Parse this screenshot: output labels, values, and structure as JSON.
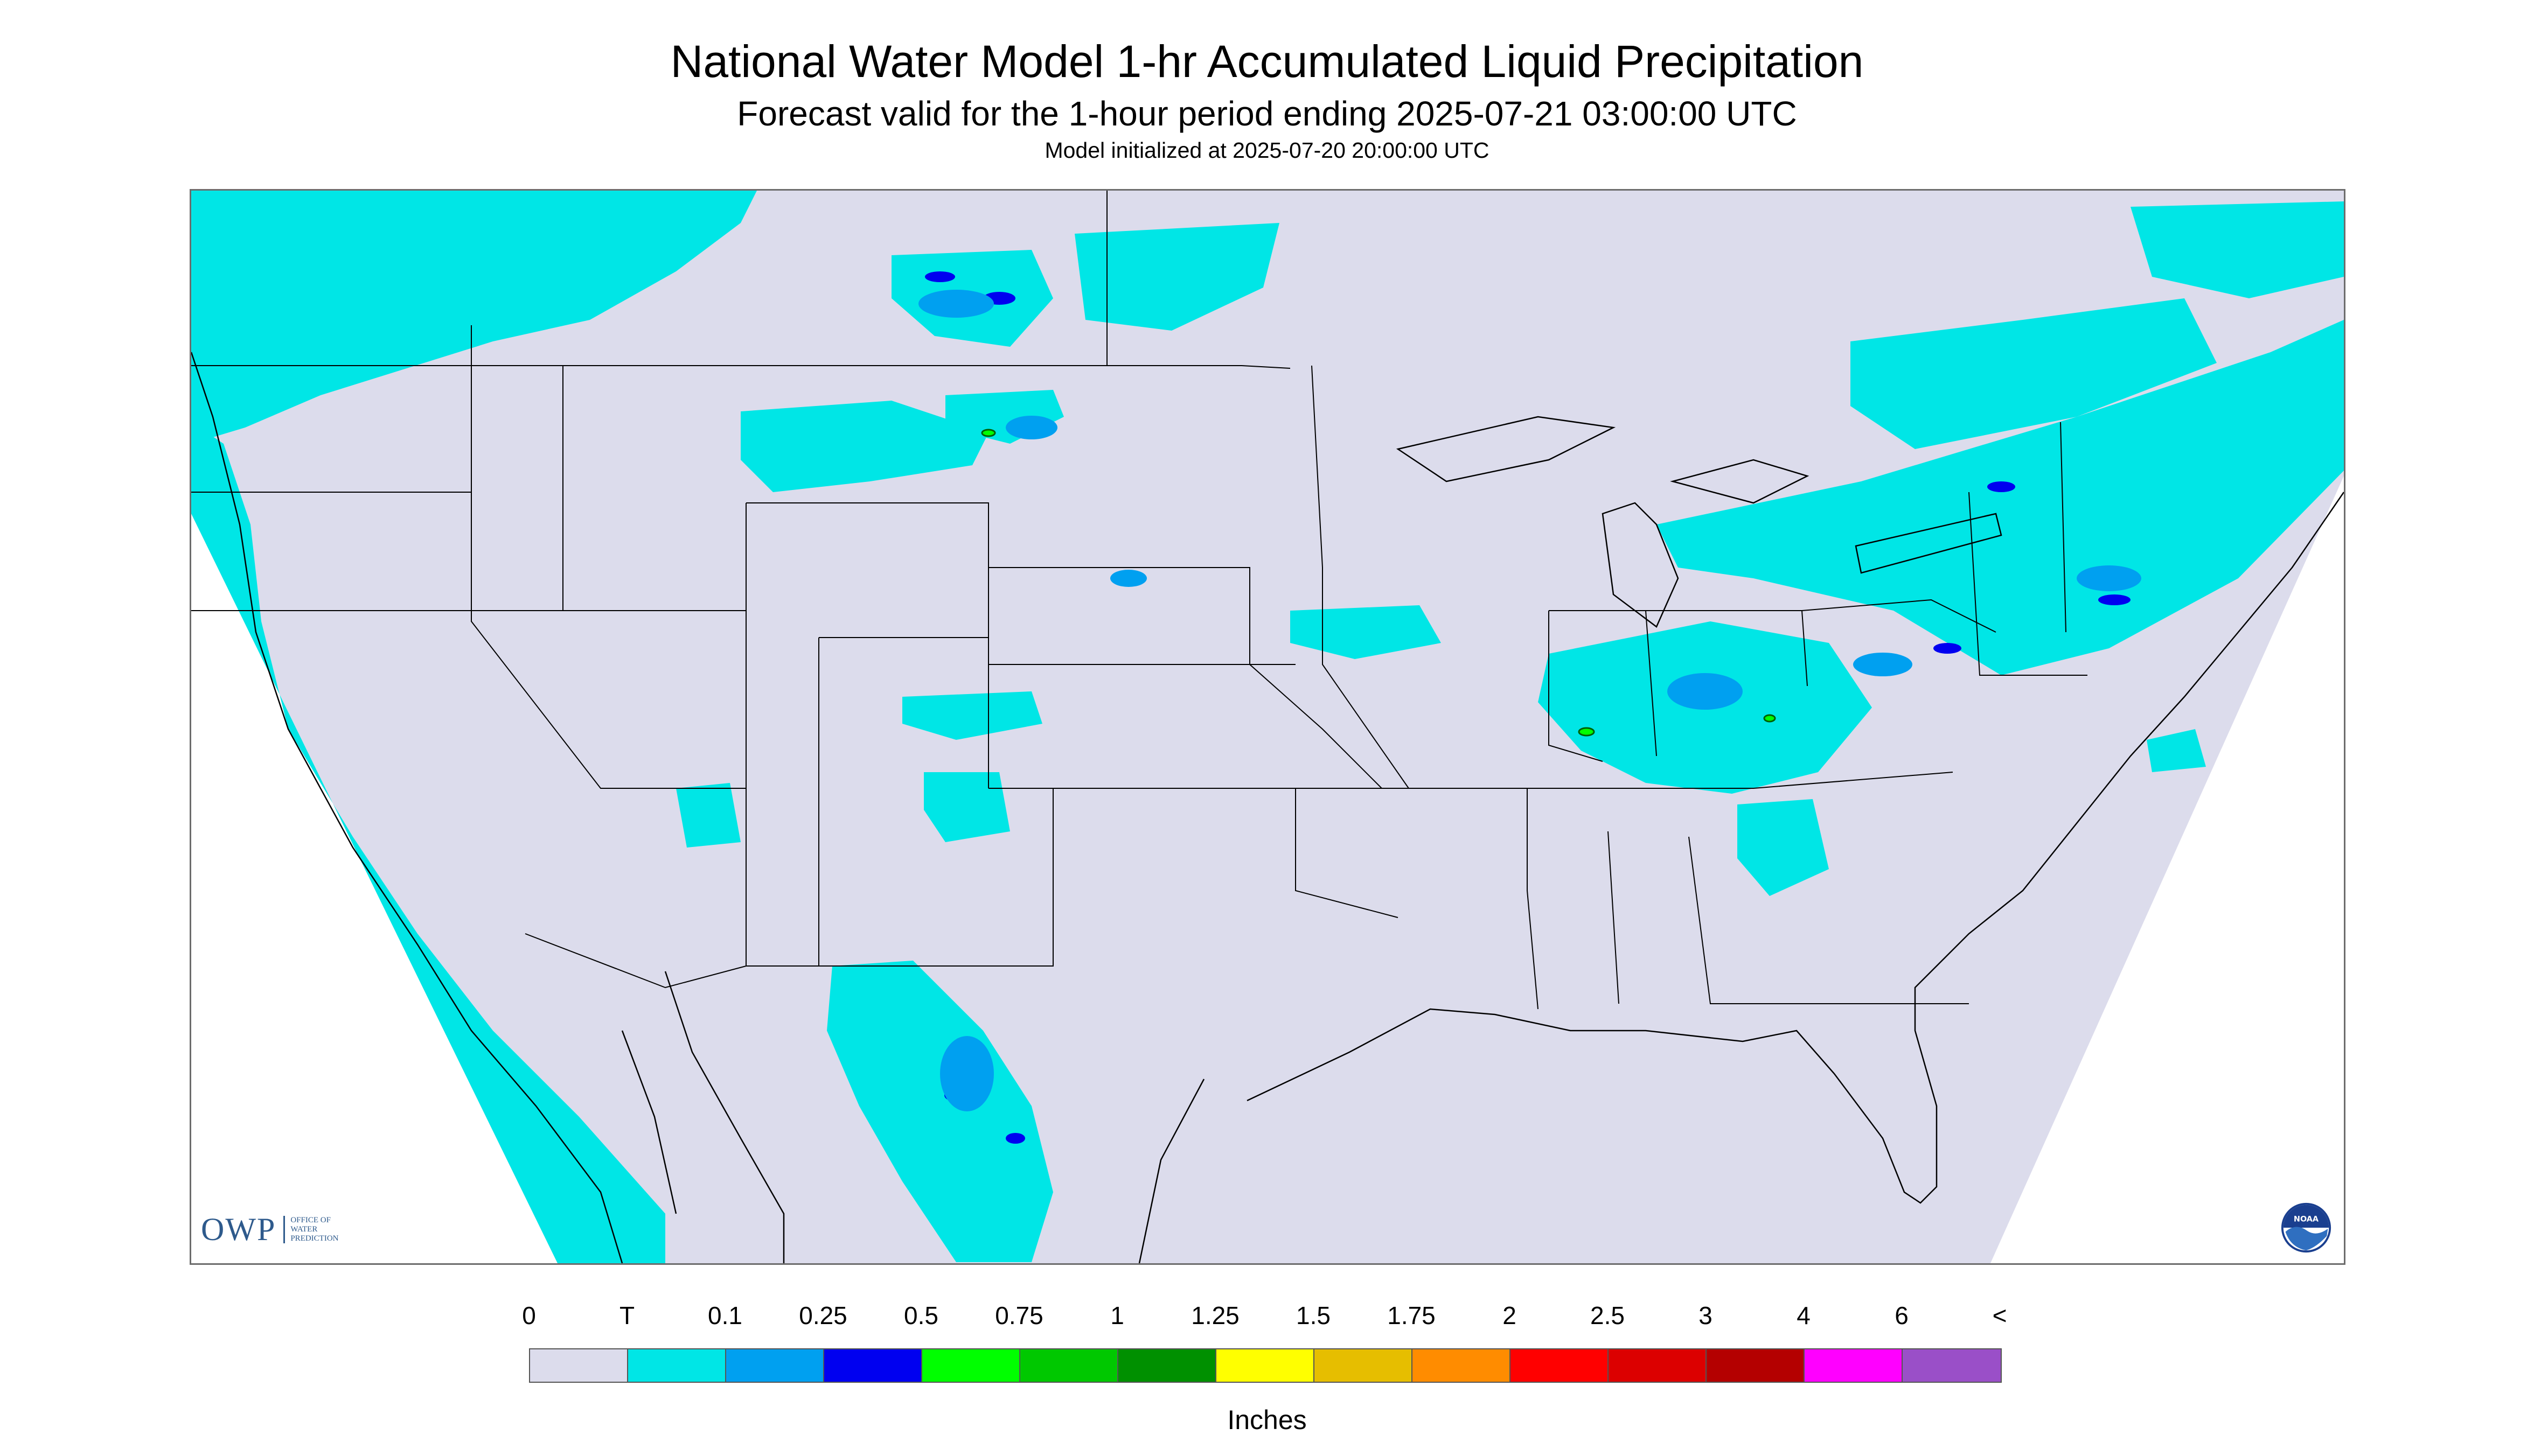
{
  "title": "National Water Model 1-hr Accumulated Liquid Precipitation",
  "subtitle": "Forecast valid for the 1-hour period ending 2025-07-21 03:00:00 UTC",
  "init_line": "Model initialized at 2025-07-20 20:00:00 UTC",
  "logos": {
    "owp": "OWP",
    "owp_subtitle": [
      "OFFICE OF",
      "WATER",
      "PREDICTION"
    ],
    "noaa": "NOAA"
  },
  "legend": {
    "tick_labels": [
      "0",
      "T",
      "0.1",
      "0.25",
      "0.5",
      "0.75",
      "1",
      "1.25",
      "1.5",
      "1.75",
      "2",
      "2.5",
      "3",
      "4",
      "6",
      "<"
    ],
    "colors": [
      "#dcdcec",
      "#00e6e6",
      "#00a0f0",
      "#0000f0",
      "#00ff00",
      "#00c800",
      "#009000",
      "#ffff00",
      "#e6be00",
      "#ff8c00",
      "#ff0000",
      "#dc0000",
      "#b40000",
      "#ff00ff",
      "#9a4fc8"
    ],
    "units": "Inches"
  },
  "map_colors": {
    "background_no_data": "#ffffff",
    "domain_fill": "#dcdcec",
    "trace": "#00e6e6",
    "light": "#00a0f0",
    "moderate": "#0000f0",
    "green": "#00ff00",
    "boundary": "#000000"
  }
}
